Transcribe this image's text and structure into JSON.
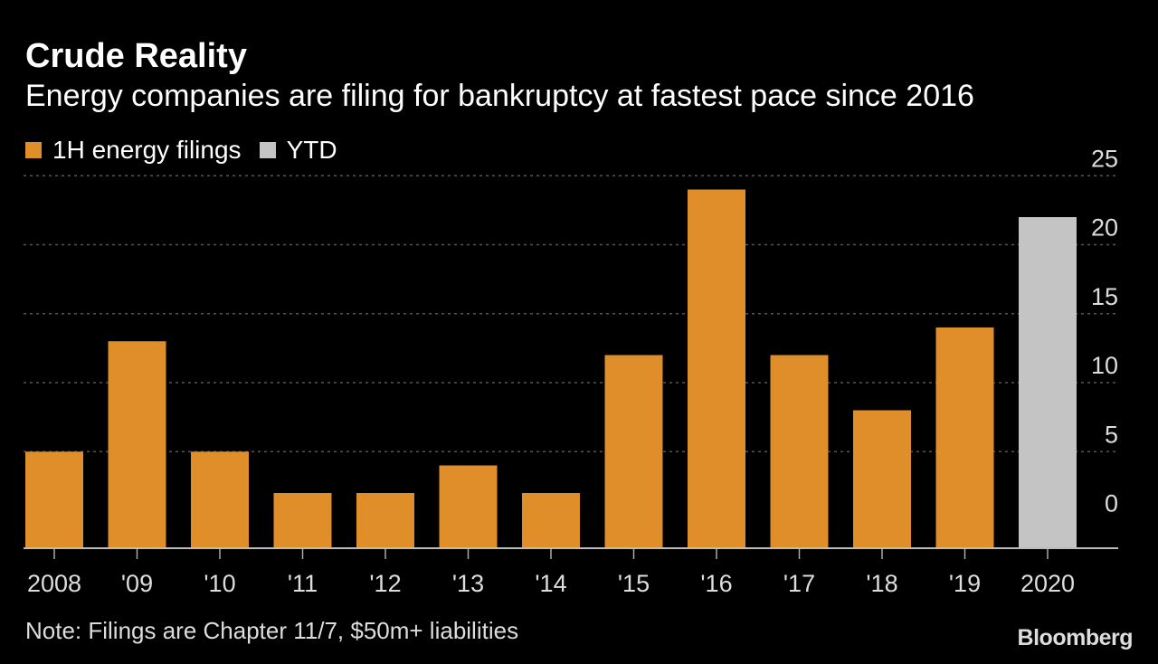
{
  "title": "Crude Reality",
  "subtitle": "Energy companies are filing for bankruptcy at fastest pace since 2016",
  "legend": [
    {
      "label": "1H energy filings",
      "color": "#e08e29"
    },
    {
      "label": "YTD",
      "color": "#c4c4c4"
    }
  ],
  "note": "Note: Filings are Chapter 11/7, $50m+ liabilities",
  "source": "Bloomberg",
  "colors": {
    "background": "#000000",
    "bar": "#e08e29",
    "ytd_bar": "#c4c4c4",
    "grid": "#555555",
    "text": "#dddddd"
  },
  "chart_data": {
    "type": "bar",
    "categories": [
      "2008",
      "'09",
      "'10",
      "'11",
      "'12",
      "'13",
      "'14",
      "'15",
      "'16",
      "'17",
      "'18",
      "'19",
      "2020"
    ],
    "series": [
      {
        "name": "1H energy filings",
        "values": [
          5,
          13,
          5,
          2,
          2,
          4,
          2,
          12,
          24,
          12,
          8,
          14,
          null
        ]
      },
      {
        "name": "YTD",
        "values": [
          null,
          null,
          null,
          null,
          null,
          null,
          null,
          null,
          null,
          null,
          null,
          null,
          22
        ]
      }
    ],
    "yticks": [
      0,
      5,
      10,
      15,
      20,
      25
    ],
    "ylim": [
      -2,
      25
    ],
    "y_axis_side": "right",
    "grid": "dotted horizontal",
    "legend_position": "top-left"
  }
}
